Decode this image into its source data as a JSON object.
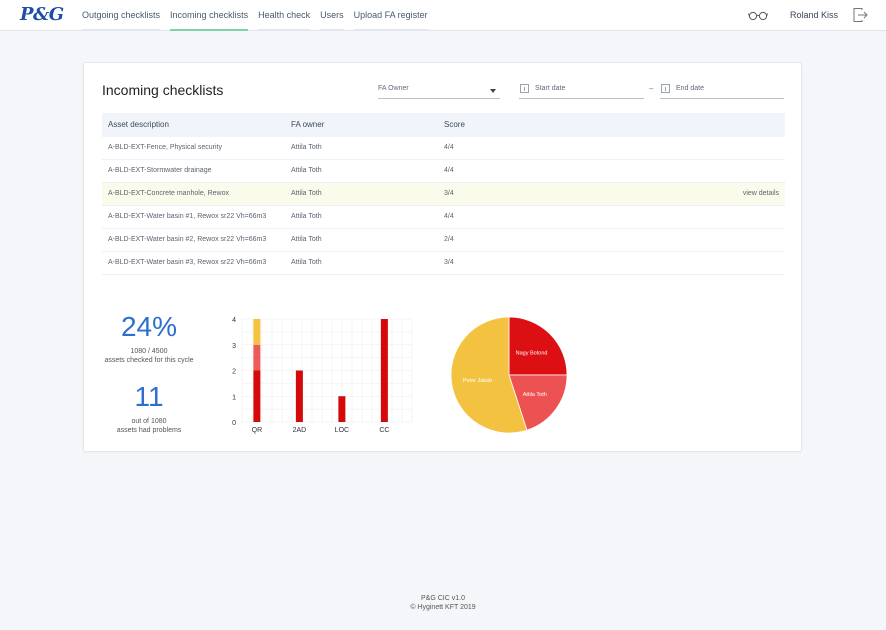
{
  "app": {
    "logo": "P&G",
    "nav": [
      "Outgoing checklists",
      "Incoming checklists",
      "Health check",
      "Users",
      "Upload FA register"
    ],
    "active_nav": 1,
    "user_name": "Roland Kiss"
  },
  "page": {
    "title": "Incoming checklists",
    "owner_select": "FA Owner",
    "start_date_placeholder": "Start date",
    "end_date_placeholder": "End date",
    "date_separator": "–"
  },
  "table": {
    "headers": [
      "Asset description",
      "FA owner",
      "Score"
    ],
    "rows": [
      {
        "asset": "A-BLD-EXT-Fence, Physical security",
        "owner": "Attila Toth",
        "score": "4/4"
      },
      {
        "asset": "A-BLD-EXT-Stormwater drainage",
        "owner": "Attila Toth",
        "score": "4/4"
      },
      {
        "asset": "A-BLD-EXT-Concrete manhole, Rewox",
        "owner": "Attila Toth",
        "score": "3/4",
        "action": "view details"
      },
      {
        "asset": "A-BLD-EXT-Water basin #1, Rewox sr22 Vh=66m3",
        "owner": "Attila Toth",
        "score": "4/4"
      },
      {
        "asset": "A-BLD-EXT-Water basin #2, Rewox sr22 Vh=66m3",
        "owner": "Attila Toth",
        "score": "2/4"
      },
      {
        "asset": "A-BLD-EXT-Water basin #3, Rewox sr22 Vh=66m3",
        "owner": "Attila Toth",
        "score": "3/4"
      }
    ]
  },
  "stats": {
    "percent": "24%",
    "checked_ratio": "1080 / 4500",
    "checked_label": "assets checked for this cycle",
    "problems": "11",
    "problems_of": "out of 1080",
    "problems_label": "assets had problems"
  },
  "chart_data": [
    {
      "type": "bar",
      "stacked": true,
      "categories": [
        "QR",
        "2AD",
        "LOC",
        "CC"
      ],
      "series": [
        {
          "values": [
            2,
            2,
            1,
            4
          ],
          "color": "#d40a0a"
        },
        {
          "values": [
            1,
            0,
            0,
            0
          ],
          "color": "#ec5a5a"
        },
        {
          "values": [
            1,
            0,
            0,
            0
          ],
          "color": "#f3c240"
        }
      ],
      "ylim": [
        0,
        4
      ],
      "yticks": [
        0,
        1,
        2,
        3,
        4
      ],
      "grid": true
    },
    {
      "type": "pie",
      "slices": [
        {
          "label": "Nagy Botond",
          "value": 25,
          "color": "#dc0f12"
        },
        {
          "label": "Attila Toth",
          "value": 20,
          "color": "#ec5252"
        },
        {
          "label": "Peter Jakab",
          "value": 55,
          "color": "#f3c240"
        }
      ]
    }
  ],
  "footer": {
    "version": "P&G CIC v1.0",
    "copyright": "© Hyginett KFT 2019"
  }
}
